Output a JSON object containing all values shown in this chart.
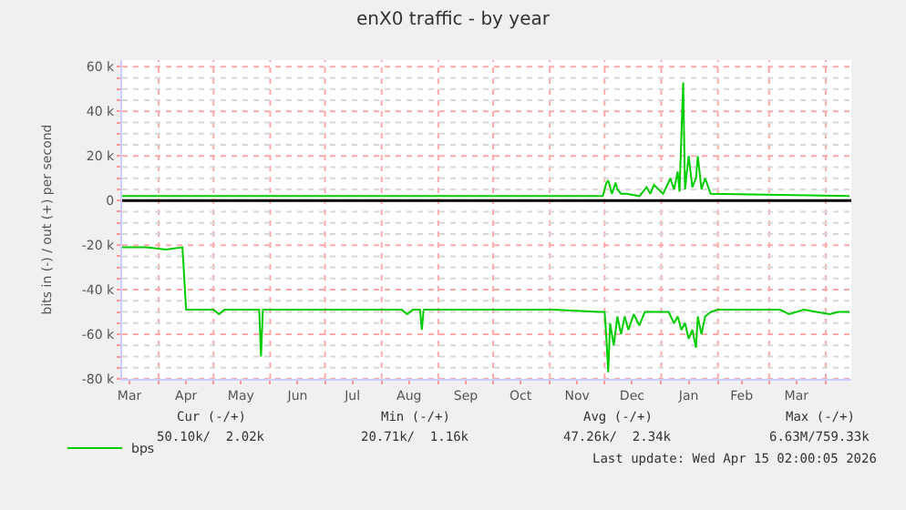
{
  "chart_data": {
    "type": "line",
    "title": "enX0 traffic - by year",
    "ylabel": "bits in (-) / out (+) per second",
    "xlim": [
      "2025-03-12",
      "2026-04-15"
    ],
    "xticks": [
      {
        "value": "2025-03-16",
        "label": "Mar"
      },
      {
        "value": "2025-04-01",
        "label": null
      },
      {
        "value": "2025-04-16",
        "label": "Apr"
      },
      {
        "value": "2025-05-01",
        "label": null
      },
      {
        "value": "2025-05-16",
        "label": "May"
      },
      {
        "value": "2025-06-01",
        "label": null
      },
      {
        "value": "2025-06-16",
        "label": "Jun"
      },
      {
        "value": "2025-07-01",
        "label": null
      },
      {
        "value": "2025-07-16",
        "label": "Jul"
      },
      {
        "value": "2025-08-01",
        "label": null
      },
      {
        "value": "2025-08-16",
        "label": "Aug"
      },
      {
        "value": "2025-09-01",
        "label": null
      },
      {
        "value": "2025-09-16",
        "label": "Sep"
      },
      {
        "value": "2025-10-01",
        "label": null
      },
      {
        "value": "2025-10-16",
        "label": "Oct"
      },
      {
        "value": "2025-11-01",
        "label": null
      },
      {
        "value": "2025-11-16",
        "label": "Nov"
      },
      {
        "value": "2025-12-01",
        "label": null
      },
      {
        "value": "2025-12-16",
        "label": "Dec"
      },
      {
        "value": "2026-01-01",
        "label": null
      },
      {
        "value": "2026-01-16",
        "label": "Jan"
      },
      {
        "value": "2026-02-01",
        "label": null
      },
      {
        "value": "2026-02-14",
        "label": "Feb"
      },
      {
        "value": "2026-03-01",
        "label": null
      },
      {
        "value": "2026-03-16",
        "label": "Mar"
      },
      {
        "value": "2026-04-01",
        "label": null
      }
    ],
    "ylim": [
      -80000,
      63000
    ],
    "yticks": [
      {
        "value": -80000,
        "label": "-80 k"
      },
      {
        "value": -75000,
        "label": null
      },
      {
        "value": -70000,
        "label": null
      },
      {
        "value": -65000,
        "label": null
      },
      {
        "value": -60000,
        "label": "-60 k"
      },
      {
        "value": -55000,
        "label": null
      },
      {
        "value": -50000,
        "label": null
      },
      {
        "value": -45000,
        "label": null
      },
      {
        "value": -40000,
        "label": "-40 k"
      },
      {
        "value": -35000,
        "label": null
      },
      {
        "value": -30000,
        "label": null
      },
      {
        "value": -25000,
        "label": null
      },
      {
        "value": -20000,
        "label": "-20 k"
      },
      {
        "value": -15000,
        "label": null
      },
      {
        "value": -10000,
        "label": null
      },
      {
        "value": -5000,
        "label": null
      },
      {
        "value": 0,
        "label": "0"
      },
      {
        "value": 5000,
        "label": null
      },
      {
        "value": 10000,
        "label": null
      },
      {
        "value": 15000,
        "label": null
      },
      {
        "value": 20000,
        "label": "20 k"
      },
      {
        "value": 25000,
        "label": null
      },
      {
        "value": 30000,
        "label": null
      },
      {
        "value": 35000,
        "label": null
      },
      {
        "value": 40000,
        "label": "40 k"
      },
      {
        "value": 45000,
        "label": null
      },
      {
        "value": 50000,
        "label": null
      },
      {
        "value": 55000,
        "label": null
      },
      {
        "value": 60000,
        "label": "60 k"
      }
    ],
    "grid": true,
    "legend": "bottom left",
    "marker": "none",
    "line_style": "solid",
    "ref_lines": [
      {
        "axis": "y",
        "value": 0,
        "color": "#000000"
      }
    ],
    "series": [
      {
        "name": "bps",
        "color": "#00cc00",
        "x": [
          "2025-03-12",
          "2025-03-25",
          "2025-04-05",
          "2025-04-14",
          "2025-04-16",
          "2025-05-01",
          "2025-05-04",
          "2025-05-07",
          "2025-05-26",
          "2025-05-27",
          "2025-05-28",
          "2025-08-12",
          "2025-08-15",
          "2025-08-18",
          "2025-08-22",
          "2025-08-23",
          "2025-08-24",
          "2025-11-03",
          "2025-11-28",
          "2025-12-01",
          "2025-12-02",
          "2025-12-03",
          "2025-12-04",
          "2025-12-06",
          "2025-12-08",
          "2025-12-10",
          "2025-12-12",
          "2025-12-14",
          "2025-12-17",
          "2025-12-20",
          "2025-12-23",
          "2026-01-05",
          "2026-01-08",
          "2026-01-10",
          "2026-01-12",
          "2026-01-14",
          "2026-01-16",
          "2026-01-18",
          "2026-01-20",
          "2026-01-21",
          "2026-01-23",
          "2026-01-25",
          "2026-01-28",
          "2026-02-01",
          "2026-03-07",
          "2026-03-12",
          "2026-03-20",
          "2026-04-03",
          "2026-04-08",
          "2026-04-14"
        ],
        "values": [
          -21000,
          -21000,
          -22000,
          -21000,
          -49000,
          -49000,
          -51000,
          -49000,
          -49000,
          -70000,
          -49000,
          -49000,
          -51000,
          -49000,
          -49000,
          -58000,
          -49000,
          -49000,
          -50000,
          -50000,
          -62000,
          -77000,
          -55000,
          -65000,
          -52000,
          -60000,
          -52000,
          -58000,
          -51000,
          -56000,
          -50000,
          -50000,
          -55000,
          -52000,
          -58000,
          -55000,
          -62000,
          -58000,
          -66000,
          -52000,
          -60000,
          -52000,
          -50000,
          -49000,
          -49000,
          -51000,
          -49000,
          -51000,
          -50000,
          -50000
        ]
      },
      {
        "color": "#00cc00",
        "x": [
          "2025-03-12",
          "2025-08-18",
          "2025-11-15",
          "2025-11-30",
          "2025-12-02",
          "2025-12-03",
          "2025-12-05",
          "2025-12-07",
          "2025-12-08",
          "2025-12-10",
          "2025-12-13",
          "2025-12-20",
          "2025-12-24",
          "2025-12-26",
          "2025-12-28",
          "2026-01-02",
          "2026-01-06",
          "2026-01-08",
          "2026-01-10",
          "2026-01-11",
          "2026-01-13",
          "2026-01-14",
          "2026-01-16",
          "2026-01-18",
          "2026-01-20",
          "2026-01-21",
          "2026-01-23",
          "2026-01-25",
          "2026-01-28",
          "2026-04-14"
        ],
        "values": [
          2000,
          2000,
          2000,
          2000,
          8000,
          9000,
          3000,
          8000,
          5000,
          3000,
          3000,
          2000,
          6000,
          3000,
          7000,
          3000,
          10000,
          5000,
          13000,
          4000,
          53000,
          5000,
          20000,
          6000,
          10000,
          20000,
          5000,
          10000,
          3000,
          2000
        ]
      }
    ],
    "annotations": [
      "Cur (-/+)",
      "Min (-/+)",
      "Avg (-/+)",
      "Max (-/+)",
      "50.10k/  2.02k",
      "20.71k/  1.16k",
      "47.26k/  2.34k",
      "6.63M/759.33k",
      "Last update: Wed Apr 15 02:00:05 2026"
    ]
  }
}
